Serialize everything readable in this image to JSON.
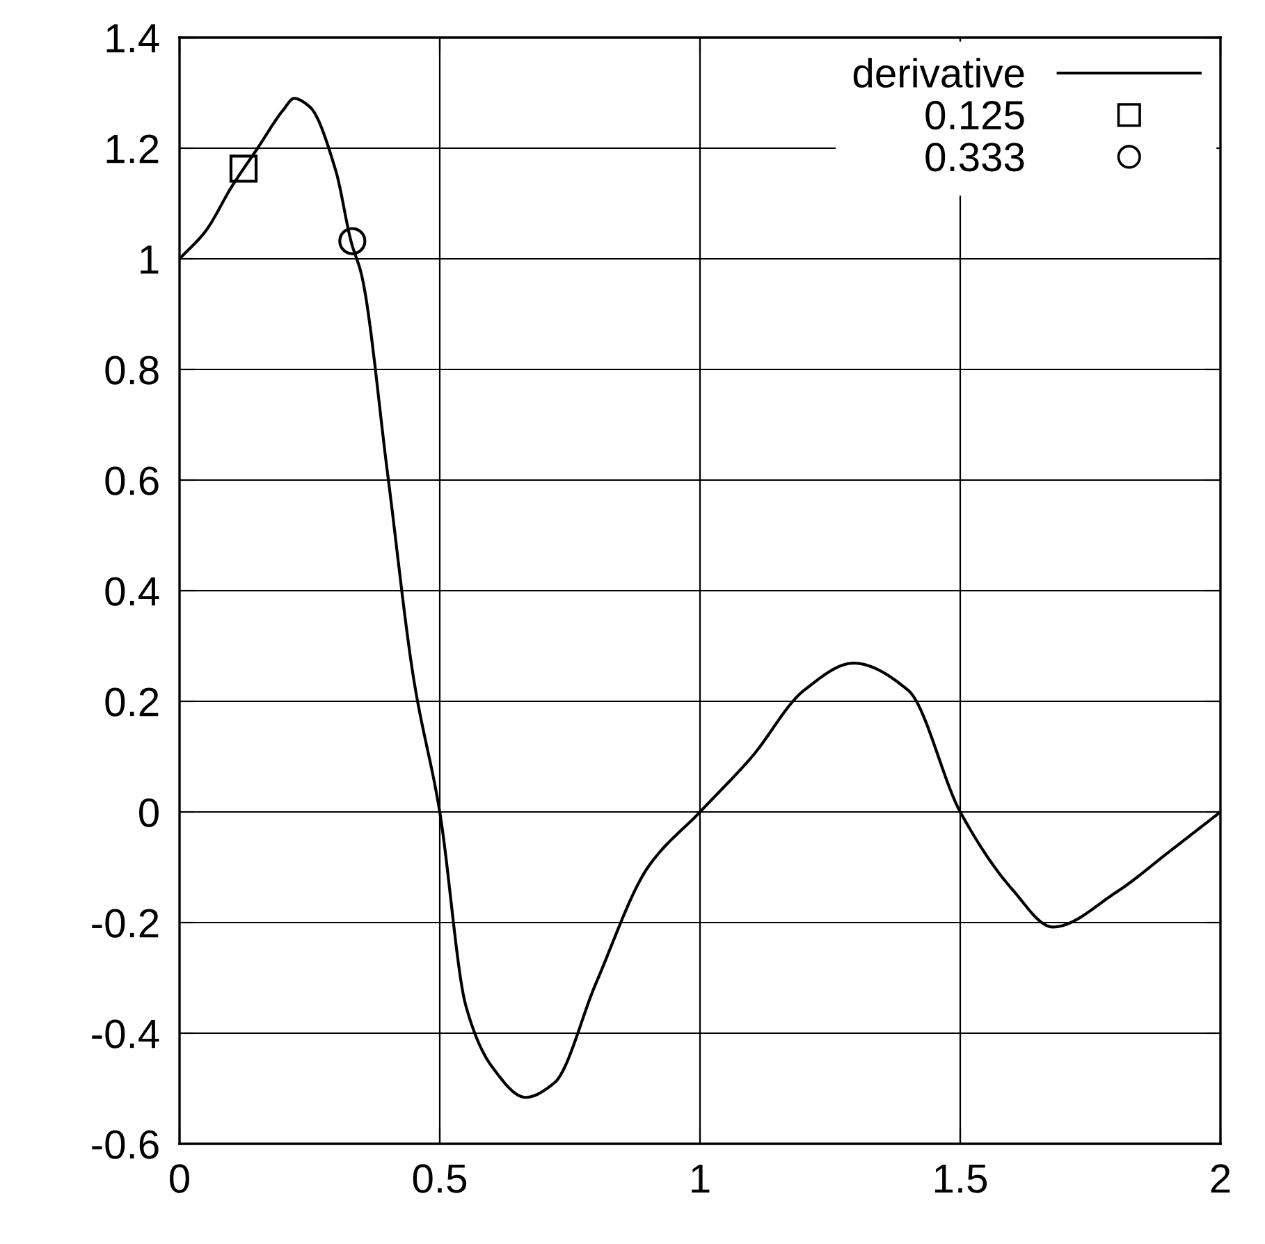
{
  "chart_data": {
    "type": "line",
    "xlim": [
      0,
      2
    ],
    "ylim": [
      -0.6,
      1.4
    ],
    "xticks": [
      0,
      0.5,
      1,
      1.5,
      2
    ],
    "yticks": [
      -0.6,
      -0.4,
      -0.2,
      0,
      0.2,
      0.4,
      0.6,
      0.8,
      1,
      1.2,
      1.4
    ],
    "grid": true,
    "legend": "top right",
    "series": [
      {
        "name": "derivative",
        "color": "#000000",
        "marker": "none",
        "x": [
          0,
          0.05,
          0.1,
          0.15,
          0.2,
          0.22,
          0.25,
          0.3,
          0.33,
          0.35,
          0.4,
          0.45,
          0.5,
          0.55,
          0.6,
          0.665,
          0.72,
          0.8,
          0.9,
          1.0,
          1.1,
          1.2,
          1.295,
          1.4,
          1.5,
          1.6,
          1.678,
          1.8,
          1.9,
          2
        ],
        "values": [
          1,
          1.05,
          1.13,
          1.2,
          1.27,
          1.29,
          1.275,
          1.16,
          1.03,
          0.97,
          0.61,
          0.24,
          0,
          -0.35,
          -0.46,
          -0.516,
          -0.49,
          -0.31,
          -0.1,
          0,
          0.1,
          0.22,
          0.269,
          0.22,
          0,
          -0.14,
          -0.208,
          -0.145,
          -0.073,
          0
        ]
      },
      {
        "name": "0.125",
        "color": "#000000",
        "type": "scatter",
        "marker": "square",
        "x": [
          0.123
        ],
        "values": [
          1.163
        ]
      },
      {
        "name": "0.333",
        "color": "#000000",
        "type": "scatter",
        "marker": "circle",
        "x": [
          0.332
        ],
        "values": [
          1.032
        ]
      }
    ]
  }
}
